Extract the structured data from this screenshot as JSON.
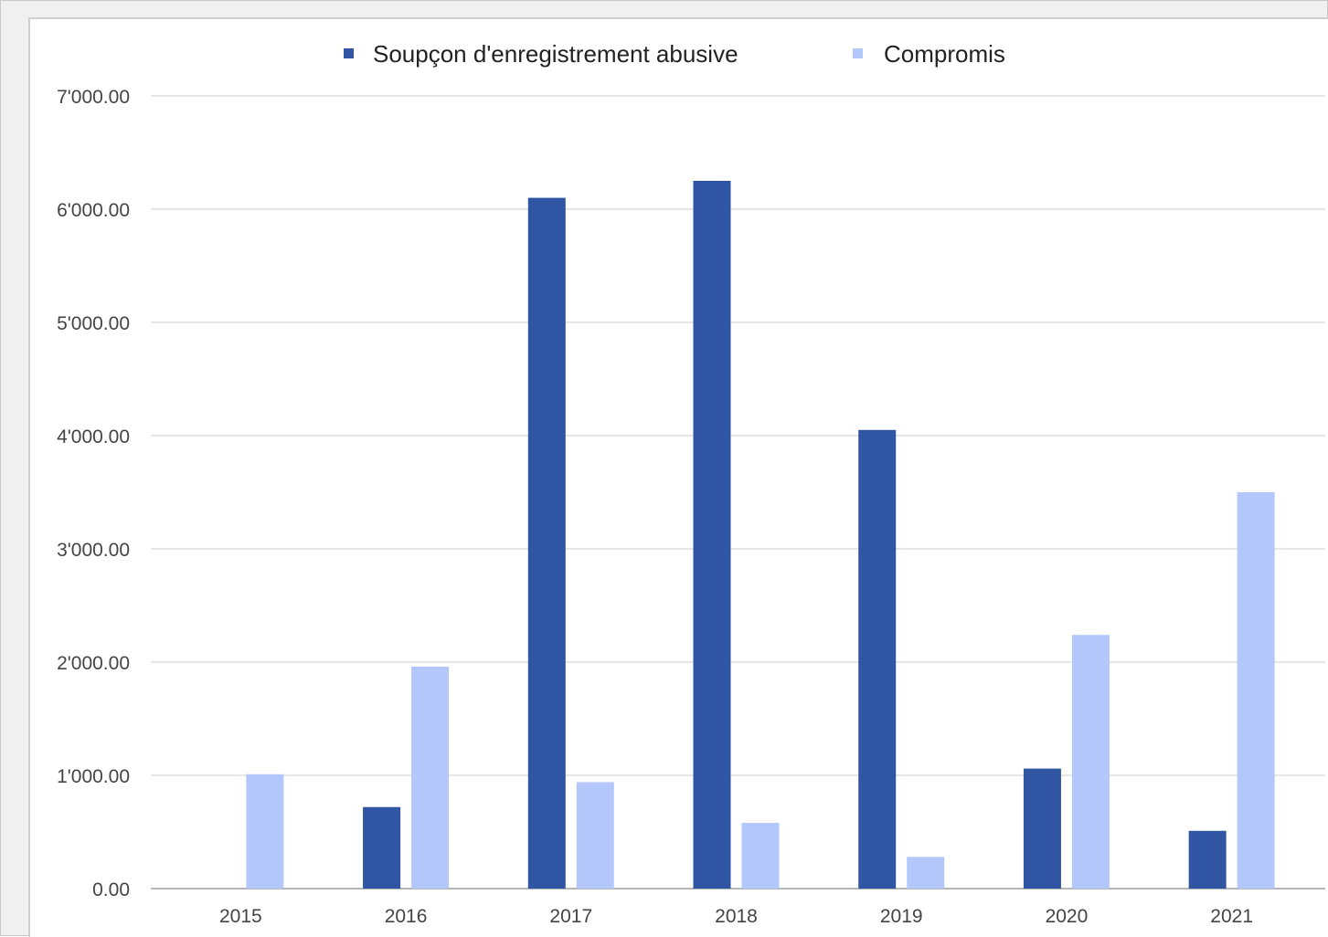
{
  "chart_data": {
    "type": "bar",
    "title": "",
    "xlabel": "",
    "ylabel": "",
    "categories": [
      "2015",
      "2016",
      "2017",
      "2018",
      "2019",
      "2020",
      "2021"
    ],
    "series": [
      {
        "name": "Soupçon d'enregistrement abusive",
        "color": "#3056a3",
        "values": [
          0,
          720,
          6100,
          6250,
          4050,
          1060,
          510
        ]
      },
      {
        "name": "Compromis",
        "color": "#b3c7fb",
        "values": [
          1010,
          1960,
          940,
          580,
          280,
          2240,
          3500
        ]
      }
    ],
    "ylim": [
      0,
      7000
    ],
    "yticks": [
      "0.00",
      "1'000.00",
      "2'000.00",
      "3'000.00",
      "4'000.00",
      "5'000.00",
      "6'000.00",
      "7'000.00"
    ],
    "grid": true,
    "legend_position": "top-center"
  }
}
